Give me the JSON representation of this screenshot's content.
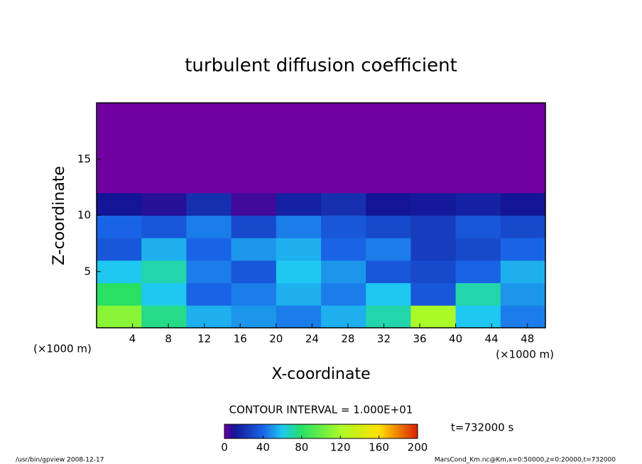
{
  "chart_data": {
    "type": "contour",
    "title": "turbulent diffusion coefficient",
    "xlabel": "X-coordinate",
    "ylabel": "Z-coordinate",
    "x_unit_label": "(×1000 m)",
    "y_unit_label": "(×1000 m)",
    "xlim": [
      0,
      50
    ],
    "ylim": [
      0,
      20
    ],
    "xticks": [
      4,
      8,
      12,
      16,
      20,
      24,
      28,
      32,
      36,
      40,
      44,
      48
    ],
    "yticks": [
      5,
      10,
      15
    ],
    "x": [
      2.5,
      7.5,
      12.5,
      17.5,
      22.5,
      27.5,
      32.5,
      37.5,
      42.5,
      47.5
    ],
    "y": [
      1,
      3,
      5,
      7,
      9,
      11,
      13,
      15,
      17,
      19
    ],
    "z": [
      [
        110,
        75,
        55,
        50,
        45,
        55,
        70,
        120,
        60,
        45
      ],
      [
        80,
        60,
        40,
        45,
        55,
        45,
        60,
        35,
        70,
        50
      ],
      [
        60,
        70,
        45,
        35,
        60,
        50,
        35,
        30,
        40,
        55
      ],
      [
        35,
        55,
        40,
        50,
        55,
        40,
        45,
        25,
        30,
        40
      ],
      [
        40,
        35,
        45,
        30,
        45,
        35,
        30,
        25,
        35,
        30
      ],
      [
        10,
        8,
        20,
        5,
        15,
        20,
        10,
        12,
        15,
        10
      ],
      [
        0,
        0,
        0,
        0,
        0,
        0,
        0,
        0,
        0,
        0
      ],
      [
        0,
        0,
        0,
        0,
        0,
        0,
        0,
        0,
        0,
        0
      ],
      [
        0,
        0,
        0,
        0,
        0,
        0,
        0,
        0,
        0,
        0
      ],
      [
        0,
        0,
        0,
        0,
        0,
        0,
        0,
        0,
        0,
        0
      ]
    ],
    "contour_interval_label": "CONTOUR INTERVAL = 1.000E+01",
    "clim": [
      0,
      200
    ],
    "cticks": [
      0,
      40,
      80,
      120,
      160,
      200
    ],
    "time_label": "t=732000 s",
    "footer_left": "/usr/bin/gpview  2008-12-17",
    "footer_right": "MarsCond_Km.nc@Km,x=0:50000,z=0:20000,t=732000"
  }
}
